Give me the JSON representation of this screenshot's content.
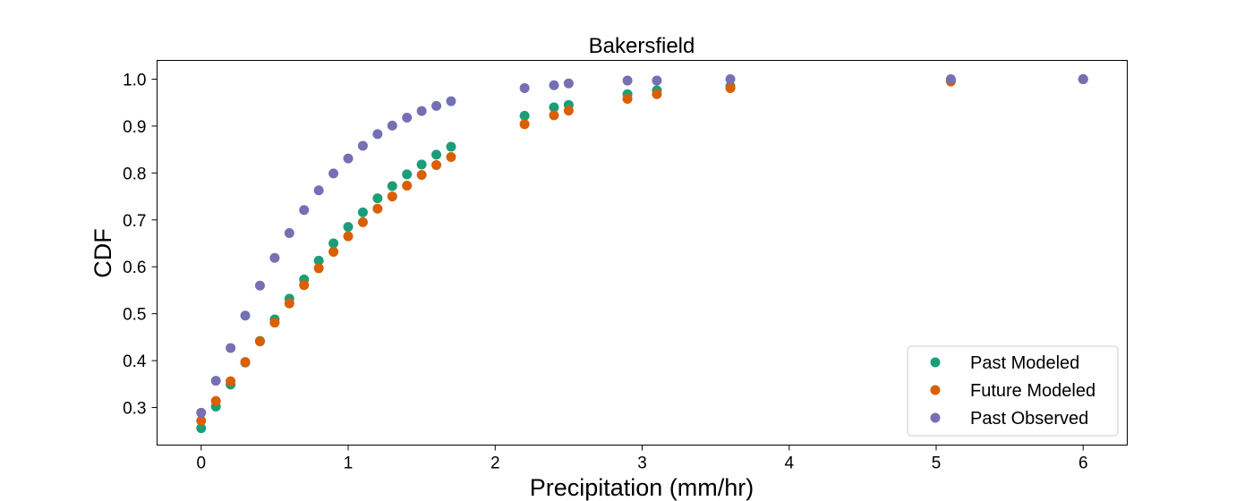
{
  "chart_data": {
    "type": "scatter",
    "title": "Bakersfield",
    "xlabel": "Precipitation (mm/hr)",
    "ylabel": "CDF",
    "xlim": [
      -0.3,
      6.3
    ],
    "ylim": [
      0.22,
      1.04
    ],
    "xticks": [
      0,
      1,
      2,
      3,
      4,
      5,
      6
    ],
    "yticks": [
      0.3,
      0.4,
      0.5,
      0.6,
      0.7,
      0.8,
      0.9,
      1.0
    ],
    "ytick_labels": [
      "0.3",
      "0.4",
      "0.5",
      "0.6",
      "0.7",
      "0.8",
      "0.9",
      "1.0"
    ],
    "grid": false,
    "legend_position": "bottom-right",
    "series": [
      {
        "name": "Past Modeled",
        "color": "#1b9e77",
        "x": [
          0,
          0.1,
          0.2,
          0.3,
          0.4,
          0.5,
          0.6,
          0.7,
          0.8,
          0.9,
          1.0,
          1.1,
          1.2,
          1.3,
          1.4,
          1.5,
          1.6,
          1.7,
          2.2,
          2.4,
          2.5,
          2.9,
          3.1,
          3.6,
          5.1,
          6.0
        ],
        "y": [
          0.256,
          0.302,
          0.349,
          0.396,
          0.442,
          0.488,
          0.532,
          0.573,
          0.613,
          0.65,
          0.685,
          0.716,
          0.746,
          0.772,
          0.797,
          0.818,
          0.839,
          0.856,
          0.922,
          0.94,
          0.945,
          0.968,
          0.976,
          0.985,
          0.998,
          1.0
        ]
      },
      {
        "name": "Future Modeled",
        "color": "#d95f02",
        "x": [
          0,
          0.1,
          0.2,
          0.3,
          0.4,
          0.5,
          0.6,
          0.7,
          0.8,
          0.9,
          1.0,
          1.1,
          1.2,
          1.3,
          1.4,
          1.5,
          1.6,
          1.7,
          2.2,
          2.4,
          2.5,
          2.9,
          3.1,
          3.6,
          5.1,
          6.0
        ],
        "y": [
          0.272,
          0.314,
          0.356,
          0.397,
          0.441,
          0.481,
          0.522,
          0.561,
          0.597,
          0.632,
          0.665,
          0.695,
          0.724,
          0.75,
          0.773,
          0.796,
          0.817,
          0.834,
          0.904,
          0.923,
          0.933,
          0.958,
          0.968,
          0.981,
          0.995,
          1.0
        ]
      },
      {
        "name": "Past Observed",
        "color": "#7570b3",
        "x": [
          0,
          0.1,
          0.2,
          0.3,
          0.4,
          0.5,
          0.6,
          0.7,
          0.8,
          0.9,
          1.0,
          1.1,
          1.2,
          1.3,
          1.4,
          1.5,
          1.6,
          1.7,
          2.2,
          2.4,
          2.5,
          2.9,
          3.1,
          3.6,
          5.1,
          6.0
        ],
        "y": [
          0.289,
          0.357,
          0.427,
          0.496,
          0.56,
          0.619,
          0.672,
          0.721,
          0.763,
          0.799,
          0.831,
          0.858,
          0.883,
          0.901,
          0.918,
          0.932,
          0.943,
          0.953,
          0.981,
          0.987,
          0.991,
          0.997,
          0.997,
          1.0,
          1.0,
          1.0
        ]
      }
    ]
  }
}
